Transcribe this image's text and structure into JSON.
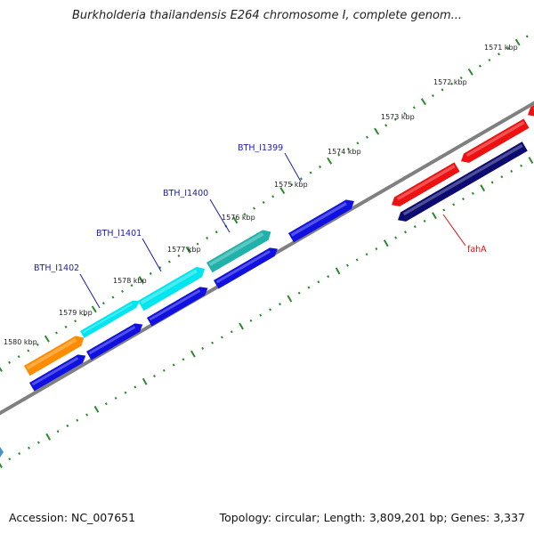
{
  "title": "Burkholderia thailandensis E264 chromosome I, complete genom...",
  "footer": {
    "accession": "Accession: NC_007651",
    "summary": "Topology: circular; Length: 3,809,201 bp; Genes: 3,337"
  },
  "ruler": {
    "unit": "kbp",
    "labels": [
      "1571 kbp",
      "1572 kbp",
      "1573 kbp",
      "1574 kbp",
      "1575 kbp",
      "1576 kbp",
      "1577 kbp",
      "1578 kbp",
      "1579 kbp",
      "1580 kbp"
    ]
  },
  "gene_labels": [
    {
      "name": "BTH_I1399",
      "color": "#1a1aaa"
    },
    {
      "name": "BTH_I1400",
      "color": "#1a1aaa"
    },
    {
      "name": "BTH_I1401",
      "color": "#1a1aaa"
    },
    {
      "name": "BTH_I1402",
      "color": "#1a1aaa"
    },
    {
      "name": "fahA",
      "color": "#dd1111"
    }
  ],
  "colors": {
    "backbone": "#888888",
    "ruler": "#2a8a2a",
    "cds_forward": "#1010e0",
    "cds_reverse_red": "#ee1111",
    "cds_reverse_navy": "#0a0a70",
    "orange": "#ff8c00",
    "cyan": "#00e5ee",
    "teal": "#20b2aa"
  }
}
